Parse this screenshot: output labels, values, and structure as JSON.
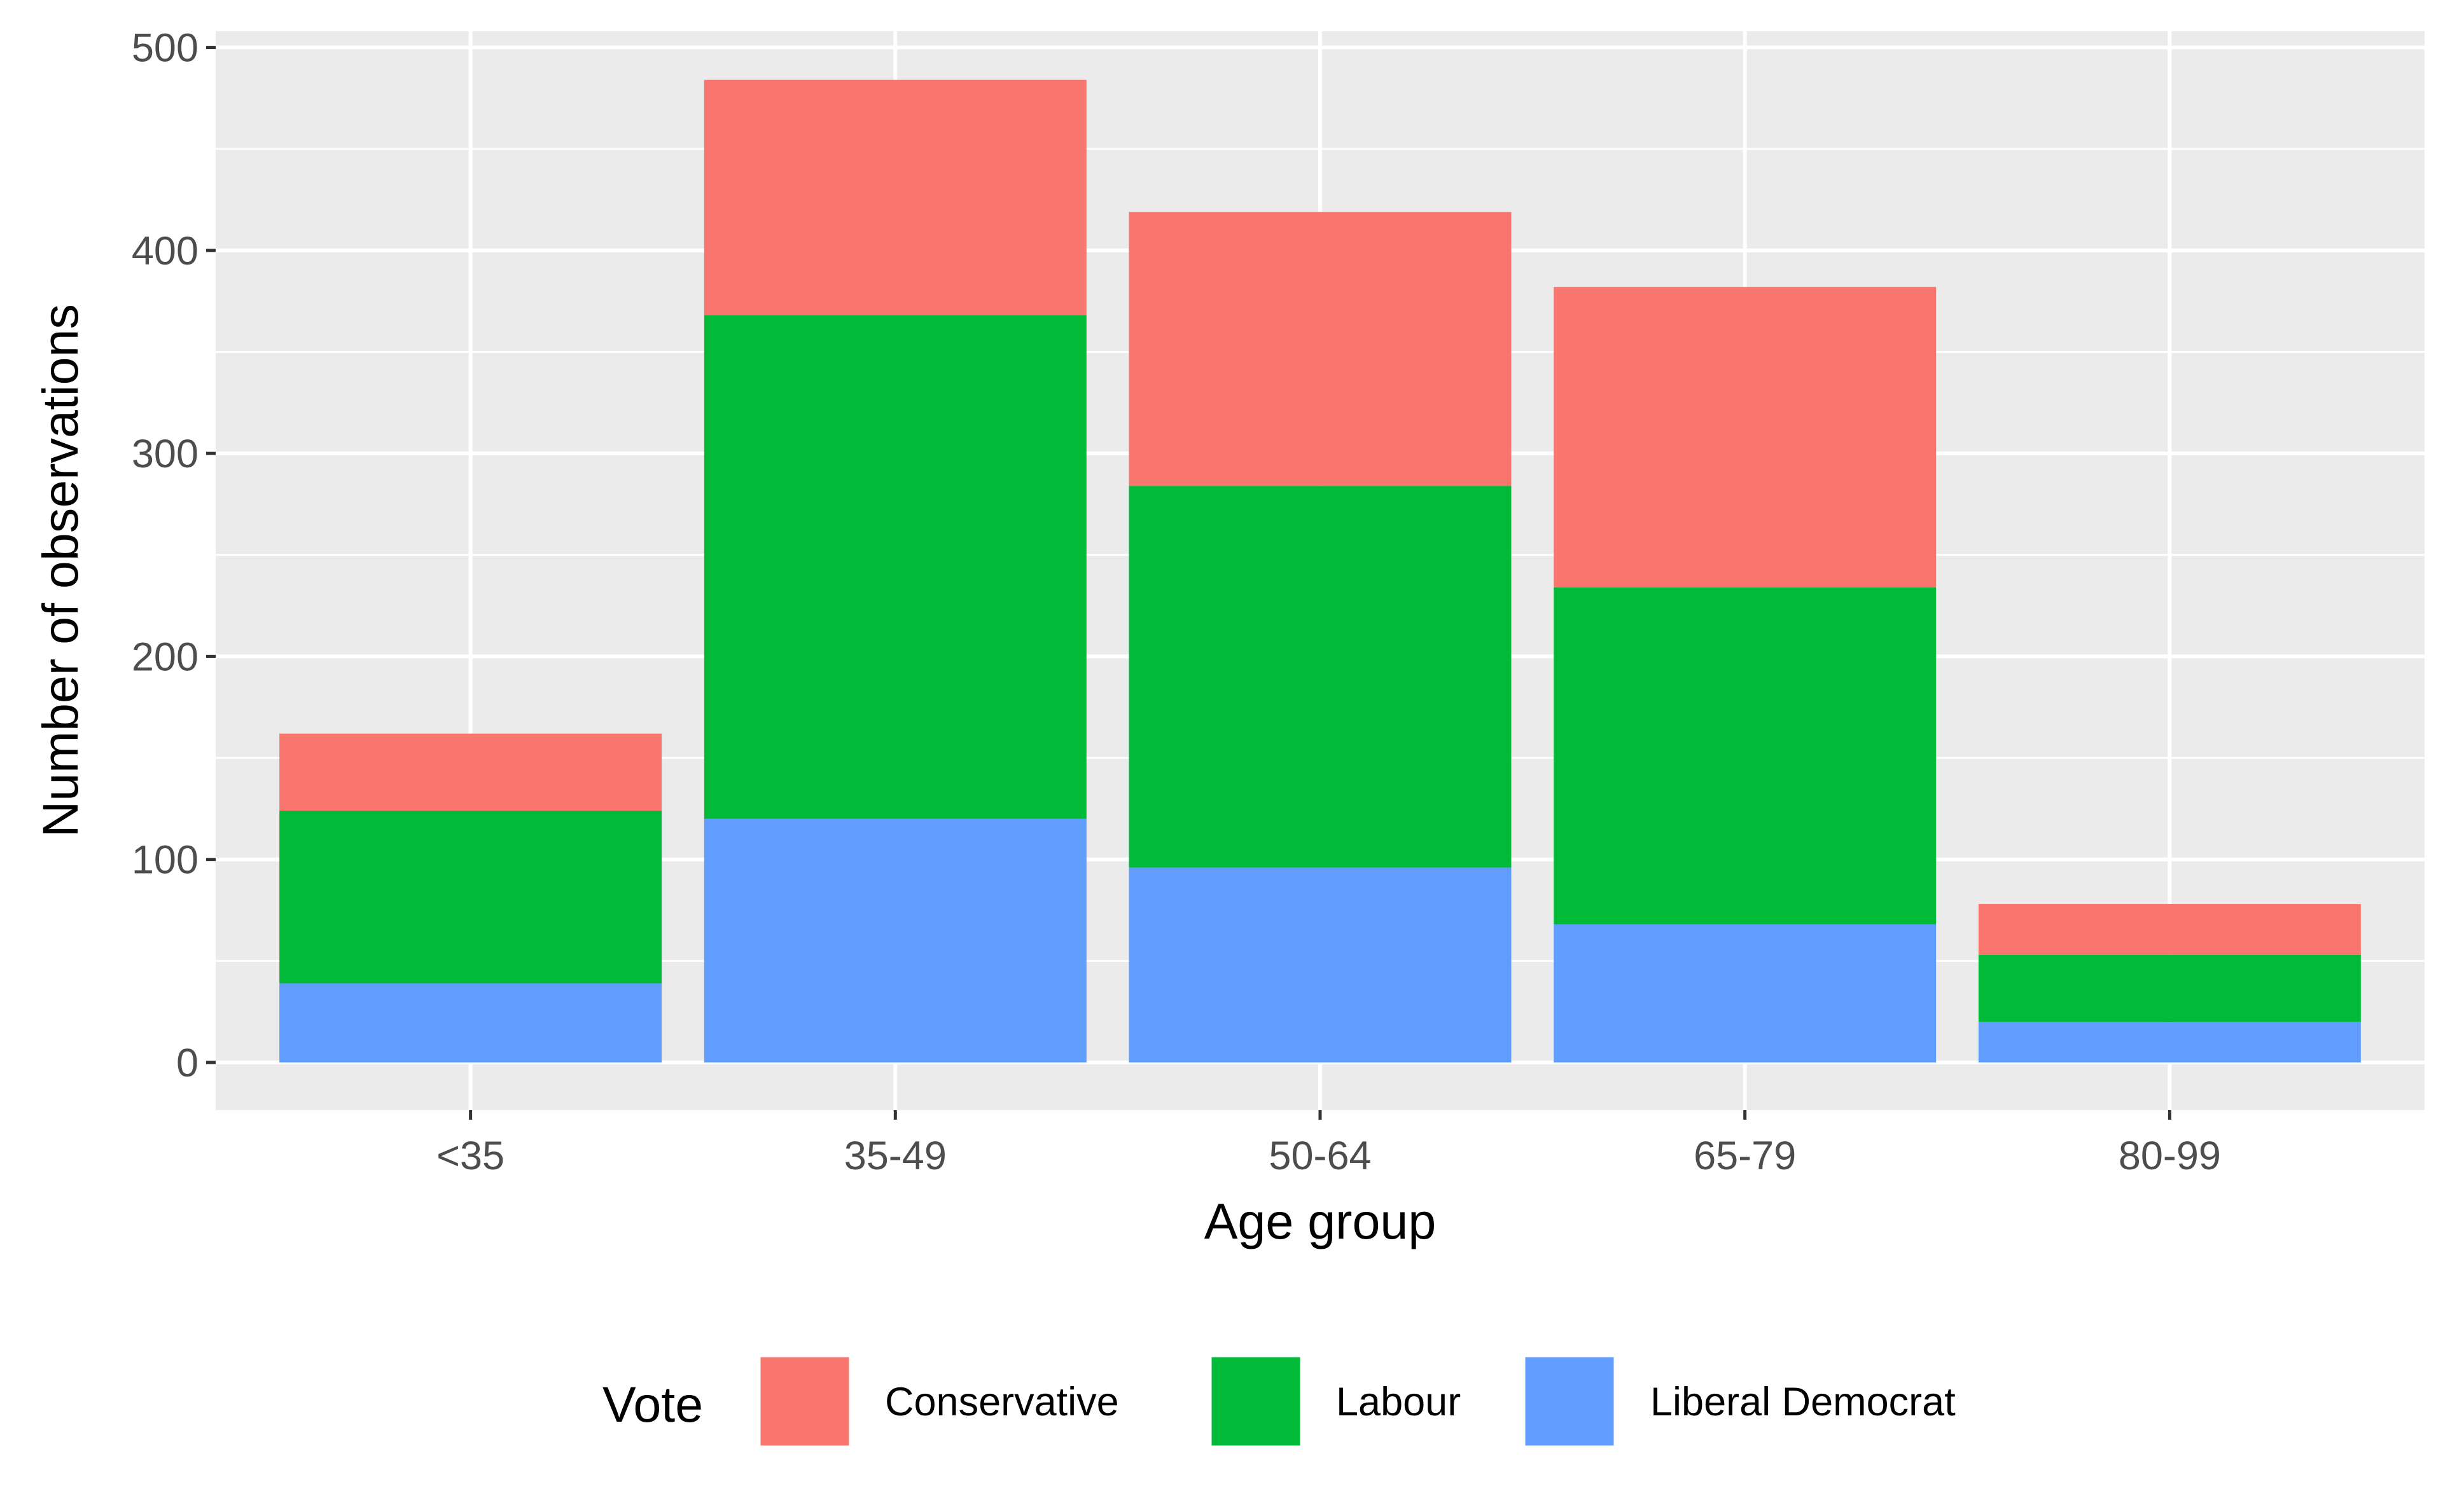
{
  "chart_data": {
    "type": "bar",
    "stacked": true,
    "xlabel": "Age group",
    "ylabel": "Number of observations",
    "categories": [
      "<35",
      "35-49",
      "50-64",
      "65-79",
      "80-99"
    ],
    "series": [
      {
        "name": "Liberal Democrat",
        "color": "#619CFF",
        "values": [
          39,
          120,
          96,
          68,
          20
        ]
      },
      {
        "name": "Labour",
        "color": "#00BA38",
        "values": [
          85,
          248,
          188,
          166,
          33
        ]
      },
      {
        "name": "Conservative",
        "color": "#F8766D",
        "values": [
          38,
          116,
          135,
          148,
          25
        ]
      }
    ],
    "ylim": [
      -23.5,
      508
    ],
    "yticks": [
      0,
      100,
      200,
      300,
      400,
      500
    ],
    "grid": true,
    "panel_background": "#EBEBEB",
    "grid_color": "#FFFFFF",
    "legend": {
      "title": "Vote",
      "position": "bottom",
      "entries": [
        "Conservative",
        "Labour",
        "Liberal Democrat"
      ]
    }
  }
}
